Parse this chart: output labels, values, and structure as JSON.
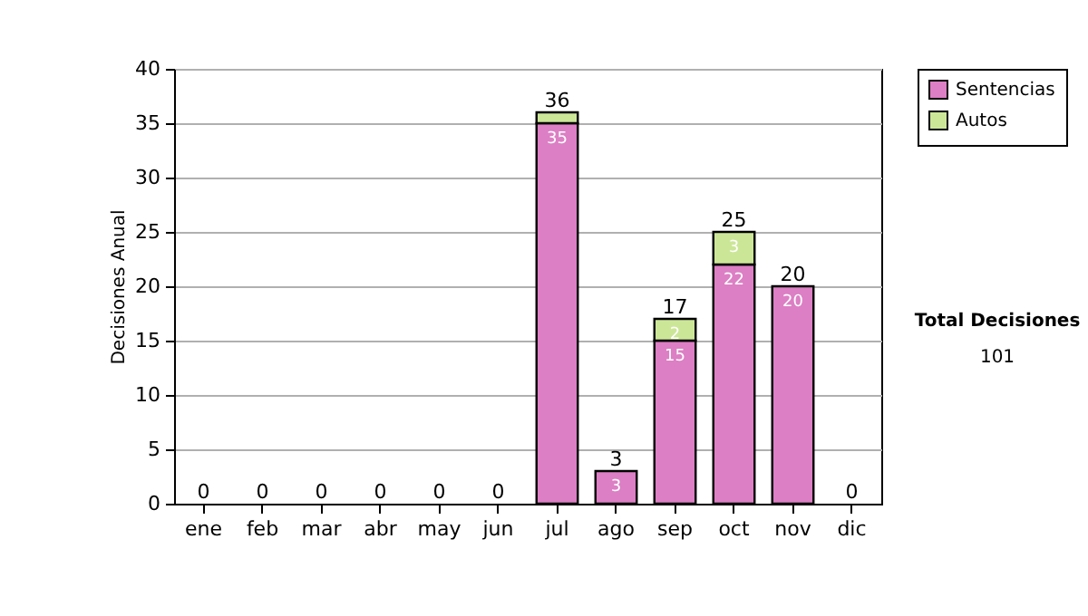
{
  "chart_data": {
    "type": "bar",
    "ylabel": "Decisiones Anual",
    "stacked": true,
    "categories": [
      "ene",
      "feb",
      "mar",
      "abr",
      "may",
      "jun",
      "jul",
      "ago",
      "sep",
      "oct",
      "nov",
      "dic"
    ],
    "series": [
      {
        "name": "Sentencias",
        "color": "#dc7fc4",
        "values": [
          0,
          0,
          0,
          0,
          0,
          0,
          35,
          3,
          15,
          22,
          20,
          0
        ],
        "value_labels": [
          null,
          null,
          null,
          null,
          null,
          null,
          "35",
          "3",
          "15",
          "22",
          "20",
          null
        ]
      },
      {
        "name": "Autos",
        "color": "#cce698",
        "values": [
          0,
          0,
          0,
          0,
          0,
          0,
          1,
          0,
          2,
          3,
          0,
          0
        ],
        "value_labels": [
          null,
          null,
          null,
          null,
          null,
          null,
          null,
          null,
          "2",
          "3",
          null,
          null
        ]
      }
    ],
    "totals": [
      "0",
      "0",
      "0",
      "0",
      "0",
      "0",
      "36",
      "3",
      "17",
      "25",
      "20",
      "0"
    ],
    "ylim": [
      0,
      40
    ],
    "yticks": [
      0,
      5,
      10,
      15,
      20,
      25,
      30,
      35,
      40
    ],
    "grid": "y",
    "legend": "right",
    "annotations": [
      "Total Decisiones",
      "101"
    ]
  }
}
